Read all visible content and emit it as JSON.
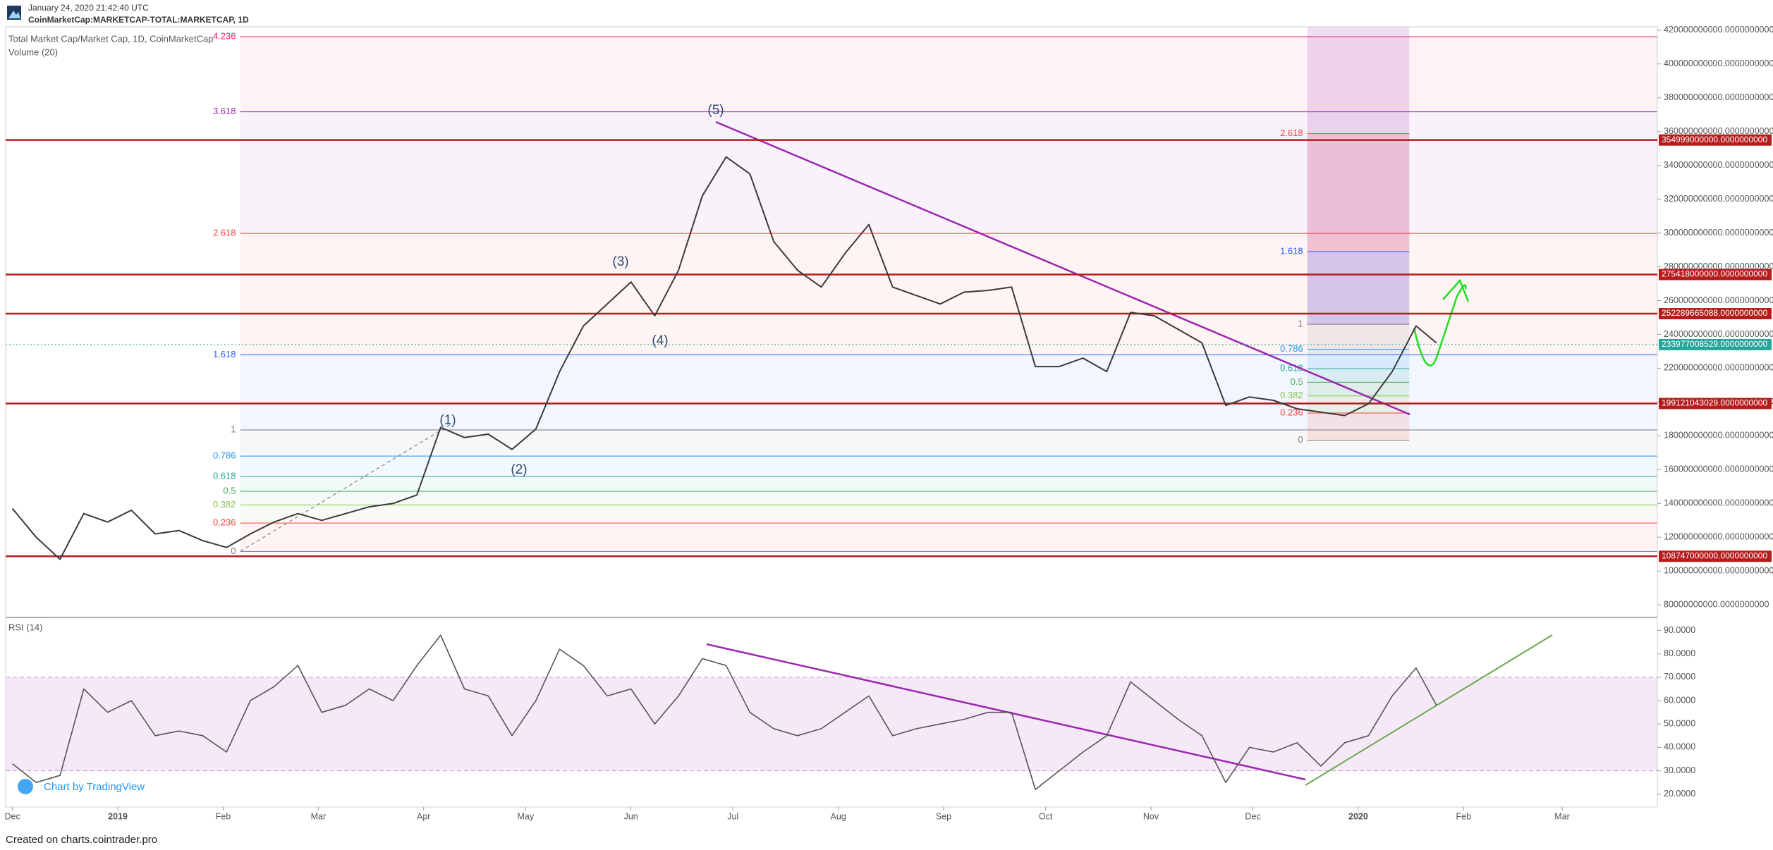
{
  "header": {
    "timestamp": "January 24, 2020 21:42:40 UTC",
    "symbol": "CoinMarketCap:MARKETCAP-TOTAL:MARKETCAP, 1D"
  },
  "volume_legend": "Volume (20)",
  "watermark": "Chart by TradingView",
  "footer": "Created on charts.cointrader.pro",
  "waves": [
    "(1)",
    "(2)",
    "(3)",
    "(4)",
    "(5)"
  ],
  "chart_data": [
    {
      "type": "line",
      "xlim": [
        "2018-11-29",
        "2020-03-29"
      ],
      "x": [
        "2018-12-01",
        "2018-12-08",
        "2018-12-15",
        "2018-12-22",
        "2018-12-29",
        "2019-01-05",
        "2019-01-12",
        "2019-01-19",
        "2019-01-26",
        "2019-02-02",
        "2019-02-09",
        "2019-02-16",
        "2019-02-23",
        "2019-03-02",
        "2019-03-09",
        "2019-03-16",
        "2019-03-23",
        "2019-03-30",
        "2019-04-06",
        "2019-04-13",
        "2019-04-20",
        "2019-04-27",
        "2019-05-04",
        "2019-05-11",
        "2019-05-18",
        "2019-05-25",
        "2019-06-01",
        "2019-06-08",
        "2019-06-15",
        "2019-06-22",
        "2019-06-29",
        "2019-07-06",
        "2019-07-13",
        "2019-07-20",
        "2019-07-27",
        "2019-08-03",
        "2019-08-10",
        "2019-08-17",
        "2019-08-24",
        "2019-08-31",
        "2019-09-07",
        "2019-09-14",
        "2019-09-21",
        "2019-09-28",
        "2019-10-05",
        "2019-10-12",
        "2019-10-19",
        "2019-10-26",
        "2019-11-02",
        "2019-11-09",
        "2019-11-16",
        "2019-11-23",
        "2019-11-30",
        "2019-12-07",
        "2019-12-14",
        "2019-12-21",
        "2019-12-28",
        "2020-01-04",
        "2020-01-11",
        "2020-01-18",
        "2020-01-24"
      ],
      "series": [
        {
          "name": "Total Market Cap/Market Cap, 1D, CoinMarketCap",
          "color": "#3a3a3a",
          "values": [
            137000000000,
            120000000000,
            107000000000,
            134000000000,
            129000000000,
            136000000000,
            122000000000,
            124000000000,
            118000000000,
            114000000000,
            122000000000,
            129000000000,
            134000000000,
            130000000000,
            134000000000,
            138000000000,
            140000000000,
            145000000000,
            185000000000,
            179000000000,
            181000000000,
            172000000000,
            184000000000,
            218000000000,
            245000000000,
            258000000000,
            271000000000,
            251000000000,
            278000000000,
            322000000000,
            345000000000,
            335000000000,
            295000000000,
            278000000000,
            268000000000,
            288000000000,
            305000000000,
            268000000000,
            263000000000,
            258000000000,
            265000000000,
            266000000000,
            268000000000,
            221000000000,
            221000000000,
            226000000000,
            218000000000,
            253000000000,
            251000000000,
            243000000000,
            235000000000,
            198000000000,
            203000000000,
            201000000000,
            196000000000,
            194000000000,
            192000000000,
            199000000000,
            218000000000,
            245000000000,
            235000000000
          ]
        }
      ],
      "ylim": [
        73000000000,
        422000000000
      ],
      "yticks": [
        {
          "value": 80000000000,
          "label": "80000000000.0000000000"
        },
        {
          "value": 100000000000,
          "label": "100000000000.0000000000"
        },
        {
          "value": 120000000000,
          "label": "120000000000.0000000000"
        },
        {
          "value": 140000000000,
          "label": "140000000000.0000000000"
        },
        {
          "value": 160000000000,
          "label": "160000000000.0000000000"
        },
        {
          "value": 180000000000,
          "label": "180000000000.0000000000"
        },
        {
          "value": 200000000000,
          "label": "200000000000.0000000000"
        },
        {
          "value": 220000000000,
          "label": "220000000000.0000000000"
        },
        {
          "value": 240000000000,
          "label": "240000000000.0000000000"
        },
        {
          "value": 260000000000,
          "label": "260000000000.0000000000"
        },
        {
          "value": 280000000000,
          "label": "280000000000.0000000000"
        },
        {
          "value": 300000000000,
          "label": "300000000000.0000000000"
        },
        {
          "value": 320000000000,
          "label": "320000000000.0000000000"
        },
        {
          "value": 340000000000,
          "label": "340000000000.0000000000"
        },
        {
          "value": 360000000000,
          "label": "360000000000.0000000000"
        },
        {
          "value": 380000000000,
          "label": "380000000000.0000000000"
        },
        {
          "value": 400000000000,
          "label": "400000000000.0000000000"
        },
        {
          "value": 420000000000,
          "label": "420000000000.0000000000"
        }
      ],
      "levels": [
        {
          "value": 354999000000,
          "label": "354999000000.0000000000",
          "color": "#b71c1c"
        },
        {
          "value": 275418000000,
          "label": "275418000000.0000000000",
          "color": "#b71c1c"
        },
        {
          "value": 252289665088,
          "label": "252289665088.0000000000",
          "color": "#b71c1c"
        },
        {
          "value": 199121043029,
          "label": "199121043029.0000000000",
          "color": "#b71c1c"
        },
        {
          "value": 108747000000,
          "label": "108747000000.0000000000",
          "color": "#b71c1c"
        }
      ],
      "last_price": {
        "value": 233977008529,
        "label": "233977008529.0000000000",
        "color": "#26a69a"
      },
      "fib_left": {
        "start": "2019-02-06",
        "levels": [
          {
            "value": 416100000000,
            "label": "4.236",
            "color": "#e91e63"
          },
          {
            "value": 371700000000,
            "label": "3.618",
            "color": "#9c27b0"
          },
          {
            "value": 299800000000,
            "label": "2.618",
            "color": "#f44336"
          },
          {
            "value": 227900000000,
            "label": "1.618",
            "color": "#2962ff"
          },
          {
            "value": 183500000000,
            "label": "1",
            "color": "#787b86"
          },
          {
            "value": 168000000000,
            "label": "0.786",
            "color": "#2196f3"
          },
          {
            "value": 155900000000,
            "label": "0.618",
            "color": "#26a69a"
          },
          {
            "value": 147200000000,
            "label": "0.5",
            "color": "#4caf50"
          },
          {
            "value": 139100000000,
            "label": "0.382",
            "color": "#8bc34a"
          },
          {
            "value": 128400000000,
            "label": "0.236",
            "color": "#f44336"
          },
          {
            "value": 111600000000,
            "label": "0",
            "color": "#787b86"
          }
        ]
      },
      "fib_right": {
        "start": "2019-12-17",
        "end": "2020-01-16",
        "levels": [
          {
            "value": 358800000000,
            "label": "2.618",
            "color": "#f44336"
          },
          {
            "value": 289000000000,
            "label": "1.618",
            "color": "#2962ff"
          },
          {
            "value": 246000000000,
            "label": "1",
            "color": "#787b86"
          },
          {
            "value": 231200000000,
            "label": "0.786",
            "color": "#2196f3"
          },
          {
            "value": 219700000000,
            "label": "0.618",
            "color": "#26a69a"
          },
          {
            "value": 211700000000,
            "label": "0.5",
            "color": "#4caf50"
          },
          {
            "value": 203600000000,
            "label": "0.382",
            "color": "#8bc34a"
          },
          {
            "value": 193500000000,
            "label": "0.236",
            "color": "#f44336"
          },
          {
            "value": 177400000000,
            "label": "0",
            "color": "#787b86"
          }
        ]
      }
    },
    {
      "type": "line",
      "xlim": [
        "2018-11-29",
        "2020-03-29"
      ],
      "x": [
        "2018-12-01",
        "2018-12-08",
        "2018-12-15",
        "2018-12-22",
        "2018-12-29",
        "2019-01-05",
        "2019-01-12",
        "2019-01-19",
        "2019-01-26",
        "2019-02-02",
        "2019-02-09",
        "2019-02-16",
        "2019-02-23",
        "2019-03-02",
        "2019-03-09",
        "2019-03-16",
        "2019-03-23",
        "2019-03-30",
        "2019-04-06",
        "2019-04-13",
        "2019-04-20",
        "2019-04-27",
        "2019-05-04",
        "2019-05-11",
        "2019-05-18",
        "2019-05-25",
        "2019-06-01",
        "2019-06-08",
        "2019-06-15",
        "2019-06-22",
        "2019-06-29",
        "2019-07-06",
        "2019-07-13",
        "2019-07-20",
        "2019-07-27",
        "2019-08-03",
        "2019-08-10",
        "2019-08-17",
        "2019-08-24",
        "2019-08-31",
        "2019-09-07",
        "2019-09-14",
        "2019-09-21",
        "2019-09-28",
        "2019-10-05",
        "2019-10-12",
        "2019-10-19",
        "2019-10-26",
        "2019-11-02",
        "2019-11-09",
        "2019-11-16",
        "2019-11-23",
        "2019-11-30",
        "2019-12-07",
        "2019-12-14",
        "2019-12-21",
        "2019-12-28",
        "2020-01-04",
        "2020-01-11",
        "2020-01-18",
        "2020-01-24"
      ],
      "series": [
        {
          "name": "RSI (14)",
          "color": "#555555",
          "values": [
            33,
            25,
            28,
            65,
            55,
            60,
            45,
            47,
            45,
            38,
            60,
            66,
            75,
            55,
            58,
            65,
            60,
            75,
            88,
            65,
            62,
            45,
            60,
            82,
            75,
            62,
            65,
            50,
            62,
            78,
            75,
            55,
            48,
            45,
            48,
            55,
            62,
            45,
            48,
            50,
            52,
            55,
            55,
            22,
            30,
            38,
            45,
            68,
            60,
            52,
            45,
            25,
            40,
            38,
            42,
            32,
            42,
            45,
            62,
            74,
            58
          ]
        }
      ],
      "ylim": [
        16,
        95
      ],
      "yticks": [
        {
          "value": 20,
          "label": "20.0000"
        },
        {
          "value": 30,
          "label": "30.0000"
        },
        {
          "value": 40,
          "label": "40.0000"
        },
        {
          "value": 50,
          "label": "50.0000"
        },
        {
          "value": 60,
          "label": "60.0000"
        },
        {
          "value": 70,
          "label": "70.0000"
        },
        {
          "value": 80,
          "label": "80.0000"
        },
        {
          "value": 90,
          "label": "90.0000"
        }
      ],
      "band": [
        30,
        70
      ],
      "band_color": "#9c27b0",
      "xticks": [
        {
          "value": "2018-12-01",
          "label": "Dec"
        },
        {
          "value": "2019-01-01",
          "label": "2019"
        },
        {
          "value": "2019-02-01",
          "label": "Feb"
        },
        {
          "value": "2019-03-01",
          "label": "Mar"
        },
        {
          "value": "2019-04-01",
          "label": "Apr"
        },
        {
          "value": "2019-05-01",
          "label": "May"
        },
        {
          "value": "2019-06-01",
          "label": "Jun"
        },
        {
          "value": "2019-07-01",
          "label": "Jul"
        },
        {
          "value": "2019-08-01",
          "label": "Aug"
        },
        {
          "value": "2019-09-01",
          "label": "Sep"
        },
        {
          "value": "2019-10-01",
          "label": "Oct"
        },
        {
          "value": "2019-11-01",
          "label": "Nov"
        },
        {
          "value": "2019-12-01",
          "label": "Dec"
        },
        {
          "value": "2020-01-01",
          "label": "2020"
        },
        {
          "value": "2020-02-01",
          "label": "Feb"
        },
        {
          "value": "2020-03-01",
          "label": "Mar"
        }
      ]
    }
  ]
}
